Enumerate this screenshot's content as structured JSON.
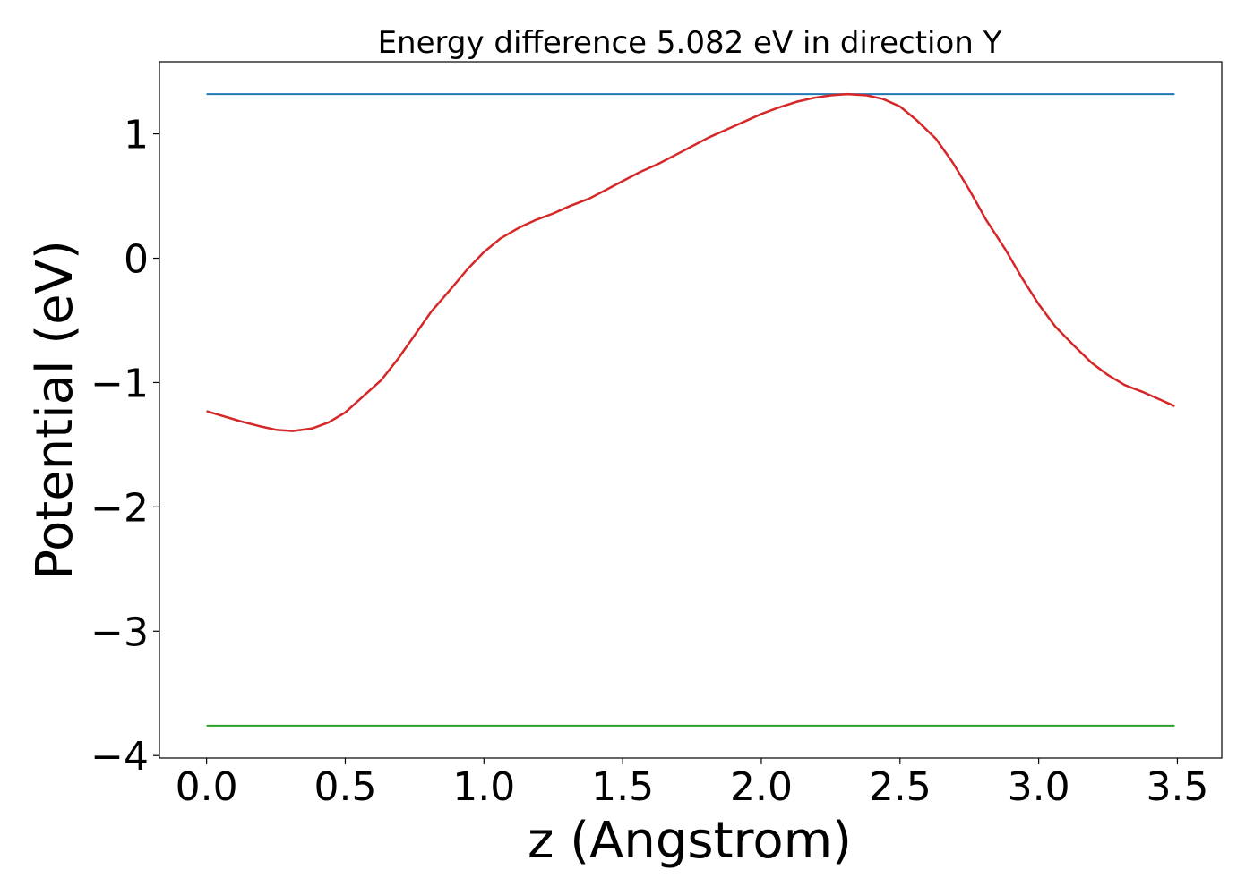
{
  "chart_data": {
    "type": "line",
    "title": "Energy difference 5.082 eV in direction Y",
    "xlabel": "z (Angstrom)",
    "ylabel": "Potential (eV)",
    "xlim": [
      -0.17,
      3.66
    ],
    "ylim": [
      -4.02,
      1.58
    ],
    "xticks": [
      0.0,
      0.5,
      1.0,
      1.5,
      2.0,
      2.5,
      3.0,
      3.5
    ],
    "xtick_labels": [
      "0.0",
      "0.5",
      "1.0",
      "1.5",
      "2.0",
      "2.5",
      "3.0",
      "3.5"
    ],
    "yticks": [
      1,
      0,
      -1,
      -2,
      -3,
      -4
    ],
    "ytick_labels": [
      "1",
      "0",
      "−1",
      "−2",
      "−3",
      "−4"
    ],
    "grid": false,
    "legend": "none",
    "series": [
      {
        "color": "#1f77b4",
        "x": [
          0.0,
          3.49
        ],
        "y": [
          1.32,
          1.32
        ]
      },
      {
        "color": "#2ca02c",
        "x": [
          0.0,
          3.49
        ],
        "y": [
          -3.76,
          -3.76
        ]
      },
      {
        "color": "#d62728",
        "x": [
          0.0,
          0.06,
          0.12,
          0.19,
          0.25,
          0.31,
          0.38,
          0.44,
          0.5,
          0.56,
          0.63,
          0.69,
          0.75,
          0.81,
          0.88,
          0.94,
          1.0,
          1.06,
          1.13,
          1.19,
          1.25,
          1.31,
          1.38,
          1.44,
          1.5,
          1.56,
          1.63,
          1.69,
          1.75,
          1.81,
          1.88,
          1.94,
          2.0,
          2.06,
          2.13,
          2.19,
          2.25,
          2.31,
          2.38,
          2.44,
          2.5,
          2.56,
          2.63,
          2.69,
          2.75,
          2.81,
          2.88,
          2.94,
          3.0,
          3.06,
          3.13,
          3.19,
          3.25,
          3.31,
          3.38,
          3.44,
          3.49
        ],
        "y": [
          -1.23,
          -1.27,
          -1.31,
          -1.35,
          -1.38,
          -1.39,
          -1.37,
          -1.32,
          -1.24,
          -1.12,
          -0.98,
          -0.81,
          -0.62,
          -0.43,
          -0.25,
          -0.09,
          0.05,
          0.16,
          0.25,
          0.31,
          0.36,
          0.42,
          0.48,
          0.55,
          0.62,
          0.69,
          0.76,
          0.83,
          0.9,
          0.97,
          1.04,
          1.1,
          1.16,
          1.21,
          1.26,
          1.29,
          1.31,
          1.32,
          1.31,
          1.28,
          1.22,
          1.11,
          0.96,
          0.77,
          0.55,
          0.31,
          0.07,
          -0.16,
          -0.37,
          -0.55,
          -0.71,
          -0.84,
          -0.94,
          -1.02,
          -1.08,
          -1.14,
          -1.19
        ]
      }
    ]
  }
}
